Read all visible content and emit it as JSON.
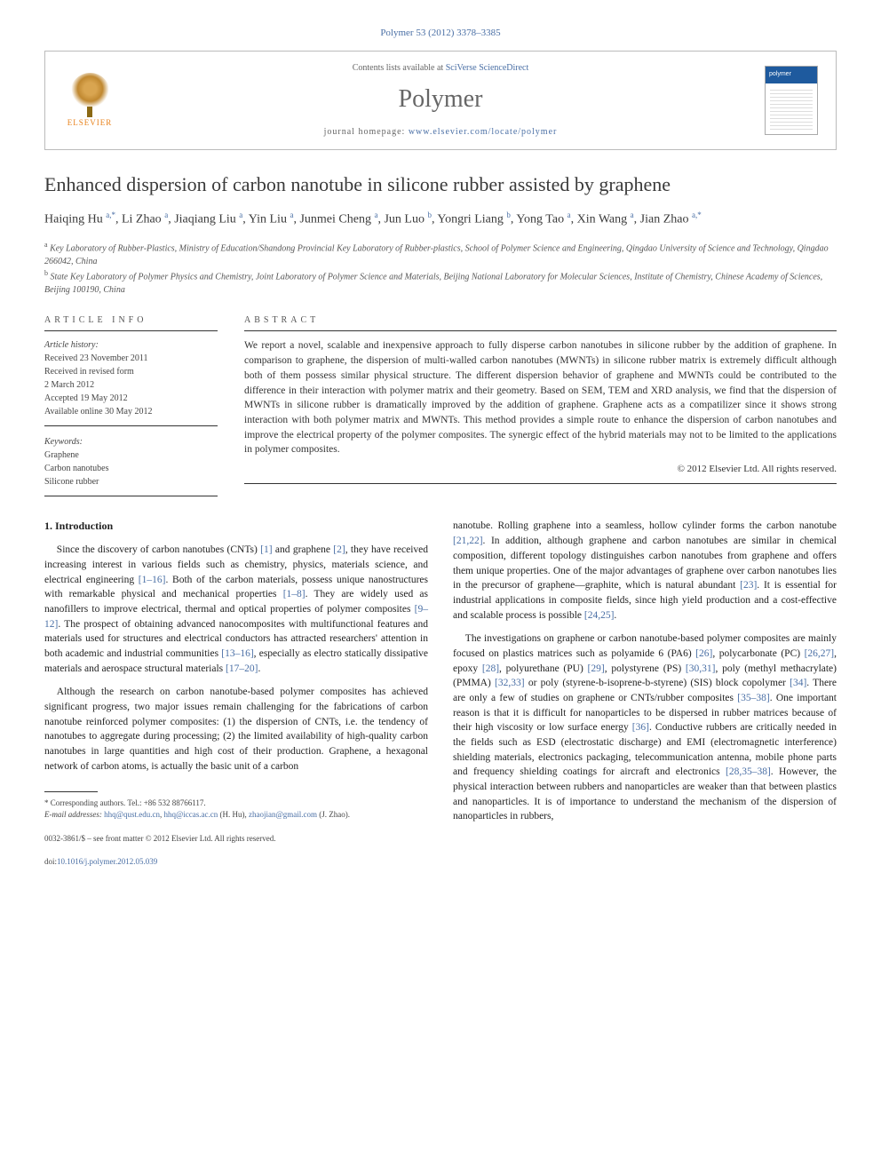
{
  "journal_ref": "Polymer 53 (2012) 3378–3385",
  "header": {
    "contents_prefix": "Contents lists available at ",
    "contents_link": "SciVerse ScienceDirect",
    "journal_name": "Polymer",
    "homepage_prefix": "journal homepage: ",
    "homepage_link": "www.elsevier.com/locate/polymer",
    "publisher": "ELSEVIER",
    "cover_label": "polymer"
  },
  "title": "Enhanced dispersion of carbon nanotube in silicone rubber assisted by graphene",
  "authors_html": "Haiqing Hu <sup>a,*</sup>, Li Zhao <sup>a</sup>, Jiaqiang Liu <sup>a</sup>, Yin Liu <sup>a</sup>, Junmei Cheng <sup>a</sup>, Jun Luo <sup>b</sup>, Yongri Liang <sup>b</sup>, Yong Tao <sup>a</sup>, Xin Wang <sup>a</sup>, Jian Zhao <sup>a,*</sup>",
  "affiliations": {
    "a": "Key Laboratory of Rubber-Plastics, Ministry of Education/Shandong Provincial Key Laboratory of Rubber-plastics, School of Polymer Science and Engineering, Qingdao University of Science and Technology, Qingdao 266042, China",
    "b": "State Key Laboratory of Polymer Physics and Chemistry, Joint Laboratory of Polymer Science and Materials, Beijing National Laboratory for Molecular Sciences, Institute of Chemistry, Chinese Academy of Sciences, Beijing 100190, China"
  },
  "article_info": {
    "label": "ARTICLE INFO",
    "history_label": "Article history:",
    "received": "Received 23 November 2011",
    "revised1": "Received in revised form",
    "revised2": "2 March 2012",
    "accepted": "Accepted 19 May 2012",
    "online": "Available online 30 May 2012",
    "keywords_label": "Keywords:",
    "keywords": [
      "Graphene",
      "Carbon nanotubes",
      "Silicone rubber"
    ]
  },
  "abstract": {
    "label": "ABSTRACT",
    "text": "We report a novel, scalable and inexpensive approach to fully disperse carbon nanotubes in silicone rubber by the addition of graphene. In comparison to graphene, the dispersion of multi-walled carbon nanotubes (MWNTs) in silicone rubber matrix is extremely difficult although both of them possess similar physical structure. The different dispersion behavior of graphene and MWNTs could be contributed to the difference in their interaction with polymer matrix and their geometry. Based on SEM, TEM and XRD analysis, we find that the dispersion of MWNTs in silicone rubber is dramatically improved by the addition of graphene. Graphene acts as a compatilizer since it shows strong interaction with both polymer matrix and MWNTs. This method provides a simple route to enhance the dispersion of carbon nanotubes and improve the electrical property of the polymer composites. The synergic effect of the hybrid materials may not to be limited to the applications in polymer composites.",
    "copyright": "© 2012 Elsevier Ltd. All rights reserved."
  },
  "body": {
    "section1_heading": "1. Introduction",
    "col1_p1": "Since the discovery of carbon nanotubes (CNTs) [1] and graphene [2], they have received increasing interest in various fields such as chemistry, physics, materials science, and electrical engineering [1–16]. Both of the carbon materials, possess unique nanostructures with remarkable physical and mechanical properties [1–8]. They are widely used as nanofillers to improve electrical, thermal and optical properties of polymer composites [9–12]. The prospect of obtaining advanced nanocomposites with multifunctional features and materials used for structures and electrical conductors has attracted researchers' attention in both academic and industrial communities [13–16], especially as electro statically dissipative materials and aerospace structural materials [17–20].",
    "col1_p2": "Although the research on carbon nanotube-based polymer composites has achieved significant progress, two major issues remain challenging for the fabrications of carbon nanotube reinforced polymer composites: (1) the dispersion of CNTs, i.e. the tendency of nanotubes to aggregate during processing; (2) the limited availability of high-quality carbon nanotubes in large quantities and high cost of their production. Graphene, a hexagonal network of carbon atoms, is actually the basic unit of a carbon",
    "col2_p1": "nanotube. Rolling graphene into a seamless, hollow cylinder forms the carbon nanotube [21,22]. In addition, although graphene and carbon nanotubes are similar in chemical composition, different topology distinguishes carbon nanotubes from graphene and offers them unique properties. One of the major advantages of graphene over carbon nanotubes lies in the precursor of graphene—graphite, which is natural abundant [23]. It is essential for industrial applications in composite fields, since high yield production and a cost-effective and scalable process is possible [24,25].",
    "col2_p2": "The investigations on graphene or carbon nanotube-based polymer composites are mainly focused on plastics matrices such as polyamide 6 (PA6) [26], polycarbonate (PC) [26,27], epoxy [28], polyurethane (PU) [29], polystyrene (PS) [30,31], poly (methyl methacrylate) (PMMA) [32,33] or poly (styrene-b-isoprene-b-styrene) (SIS) block copolymer [34]. There are only a few of studies on graphene or CNTs/rubber composites [35–38]. One important reason is that it is difficult for nanoparticles to be dispersed in rubber matrices because of their high viscosity or low surface energy [36]. Conductive rubbers are critically needed in the fields such as ESD (electrostatic discharge) and EMI (electromagnetic interference) shielding materials, electronics packaging, telecommunication antenna, mobile phone parts and frequency shielding coatings for aircraft and electronics [28,35–38]. However, the physical interaction between rubbers and nanoparticles are weaker than that between plastics and nanoparticles. It is of importance to understand the mechanism of the dispersion of nanoparticles in rubbers,"
  },
  "footnotes": {
    "corresponding": "* Corresponding authors. Tel.: +86 532 88766117.",
    "email_label": "E-mail addresses:",
    "email1": "hhq@qust.edu.cn",
    "email1_sep": ", ",
    "email2": "hhq@iccas.ac.cn",
    "email2_after": " (H. Hu), ",
    "email3": "zhaojian@gmail.com",
    "email3_after": " (J. Zhao)."
  },
  "footer": {
    "issn": "0032-3861/$ – see front matter © 2012 Elsevier Ltd. All rights reserved.",
    "doi_label": "doi:",
    "doi": "10.1016/j.polymer.2012.05.039"
  },
  "colors": {
    "link": "#4a6fa5",
    "text": "#1a1a1a",
    "muted": "#666666",
    "rule": "#333333",
    "elsevier_orange": "#e8811a",
    "cover_blue": "#1e5a9e"
  }
}
